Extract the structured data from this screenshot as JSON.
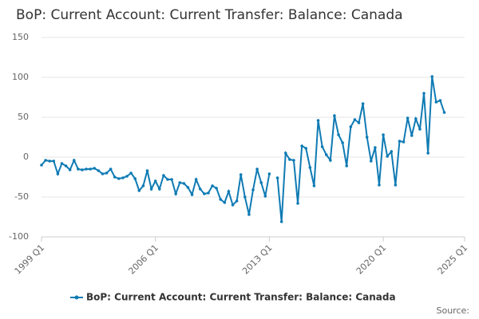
{
  "chart_data": {
    "type": "line",
    "title": "BoP: Current Account: Current Transfer: Balance: Canada",
    "x": [
      1999,
      1999.25,
      1999.5,
      1999.75,
      2000,
      2000.25,
      2000.5,
      2000.75,
      2001,
      2001.25,
      2001.5,
      2001.75,
      2002,
      2002.25,
      2002.5,
      2002.75,
      2003,
      2003.25,
      2003.5,
      2003.75,
      2004,
      2004.25,
      2004.5,
      2004.75,
      2005,
      2005.25,
      2005.5,
      2005.75,
      2006,
      2006.25,
      2006.5,
      2006.75,
      2007,
      2007.25,
      2007.5,
      2007.75,
      2008,
      2008.25,
      2008.5,
      2008.75,
      2009,
      2009.25,
      2009.5,
      2009.75,
      2010,
      2010.25,
      2010.5,
      2010.75,
      2011,
      2011.25,
      2011.5,
      2011.75,
      2012,
      2012.25,
      2012.5,
      2012.75,
      2013,
      2013.25,
      2013.5,
      2013.75,
      2014,
      2014.25,
      2014.5,
      2014.75,
      2015,
      2015.25,
      2015.5,
      2015.75,
      2016,
      2016.25,
      2016.5,
      2016.75,
      2017,
      2017.25,
      2017.5,
      2017.75,
      2018,
      2018.25,
      2018.5,
      2018.75,
      2019,
      2019.25,
      2019.5,
      2019.75,
      2020,
      2020.25,
      2020.5,
      2020.75,
      2021,
      2021.25,
      2021.5,
      2021.75,
      2022,
      2022.25,
      2022.5,
      2022.75,
      2023,
      2023.25,
      2023.5,
      2023.75
    ],
    "series": [
      {
        "name": "BoP: Current Account: Current Transfer: Balance: Canada",
        "color": "#0f7bb4",
        "values": [
          -10,
          -4,
          -5,
          -5,
          -21,
          -8,
          -11,
          -16,
          -4,
          -15,
          -16,
          -15,
          -15,
          -14,
          -17,
          -21,
          -20,
          -15,
          -25,
          -27,
          -26,
          -24,
          -20,
          -27,
          -42,
          -36,
          -17,
          -40,
          -30,
          -40,
          -23,
          -28,
          -28,
          -46,
          -32,
          -33,
          -38,
          -47,
          -28,
          -40,
          -46,
          -45,
          -36,
          -39,
          -53,
          -57,
          -43,
          -60,
          -55,
          -22,
          -50,
          -72,
          -41,
          -15,
          -32,
          -49,
          -21,
          null,
          -26,
          -81,
          5,
          -3,
          -4,
          -58,
          14,
          11,
          -13,
          -36,
          46,
          13,
          3,
          -4,
          52,
          28,
          18,
          -11,
          38,
          47,
          43,
          67,
          25,
          -5,
          12,
          -35,
          28,
          1,
          7,
          -35,
          20,
          19,
          49,
          27,
          48,
          35,
          80,
          5,
          101,
          69,
          71,
          56
        ]
      }
    ],
    "xlim": [
      1999,
      2025
    ],
    "xticks": [
      {
        "value": 1999,
        "label": "1999 Q1"
      },
      {
        "value": 2006,
        "label": "2006 Q1"
      },
      {
        "value": 2013,
        "label": "2013 Q1"
      },
      {
        "value": 2020,
        "label": "2020 Q1"
      },
      {
        "value": 2025,
        "label": "2025 Q1"
      }
    ],
    "ylim": [
      -100,
      150
    ],
    "yticks": [
      -100,
      -50,
      0,
      50,
      100,
      150
    ],
    "grid": true,
    "source": "Source:"
  }
}
